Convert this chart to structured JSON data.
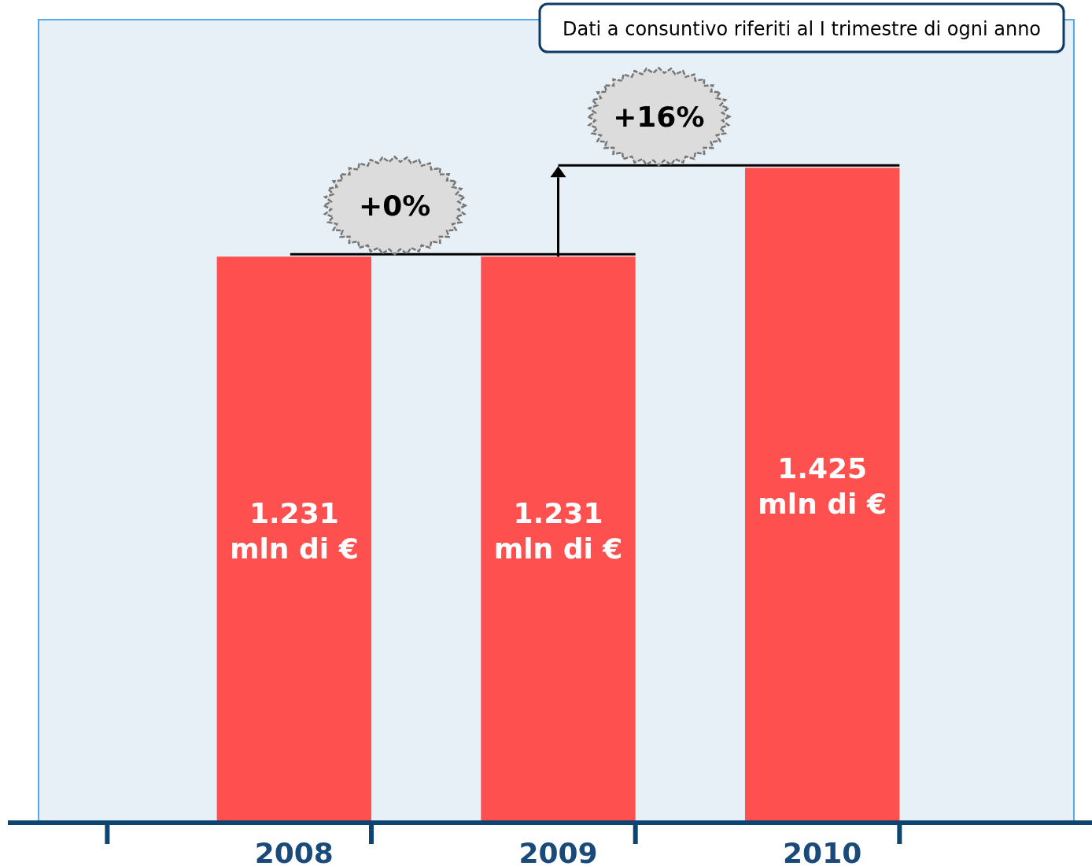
{
  "chart_data": {
    "type": "bar",
    "categories": [
      "2008",
      "2009",
      "2010"
    ],
    "values": [
      1231,
      1231,
      1425
    ],
    "color": "#ff5050",
    "value_labels": [
      "1.231\nmln di €",
      "1.231\nmln di €",
      "1.425\nmln di €"
    ],
    "annotations": [
      "Dati a consuntivo riferiti al I trimestre di ogni anno",
      "+0%",
      "+16%"
    ]
  }
}
